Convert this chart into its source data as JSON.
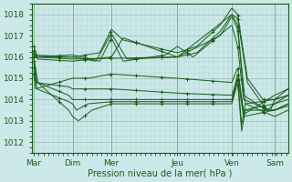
{
  "title": "",
  "xlabel": "Pression niveau de la mer( hPa )",
  "ylabel": "",
  "ylim": [
    1011.5,
    1018.5
  ],
  "yticks": [
    1012,
    1013,
    1014,
    1015,
    1016,
    1017,
    1018
  ],
  "background_color": "#cce8e8",
  "grid_color_minor": "#b0d4d4",
  "grid_color_major": "#9abcbc",
  "line_color": "#1a5c1a",
  "days": [
    "Mar",
    "Dim",
    "Mer",
    "Jeu",
    "Ven",
    "Sam"
  ],
  "xlim": [
    -0.05,
    6.55
  ]
}
